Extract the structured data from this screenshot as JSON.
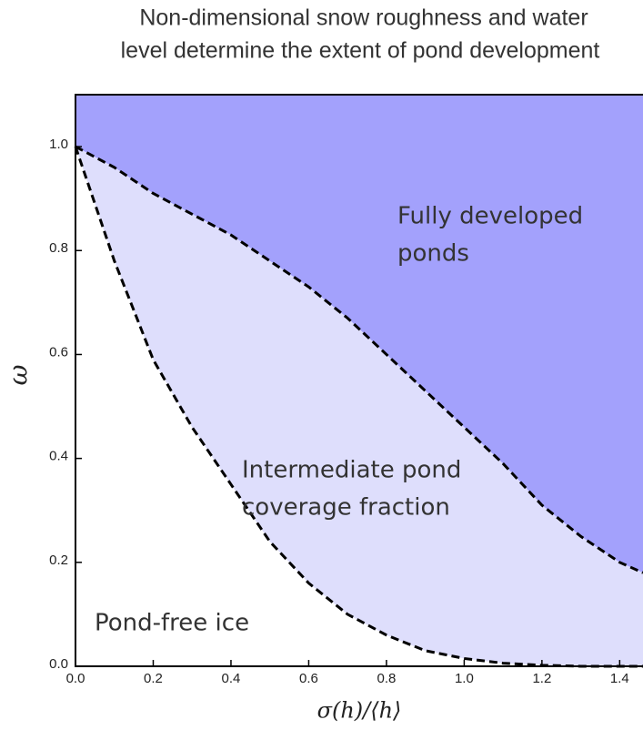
{
  "chart_data": {
    "type": "area",
    "title": [
      "Non-dimensional snow roughness and water",
      "level determine the extent of pond development"
    ],
    "x_label": "σ(h)/⟨h⟩",
    "y_label": "ω",
    "x": [
      0,
      0.1,
      0.2,
      0.3,
      0.4,
      0.5,
      0.6,
      0.7,
      0.8,
      0.9,
      1.0,
      1.1,
      1.2,
      1.3,
      1.4,
      1.46
    ],
    "series": [
      {
        "color": "#000000",
        "values": [
          1.0,
          0.96,
          0.91,
          0.87,
          0.83,
          0.78,
          0.73,
          0.67,
          0.6,
          0.53,
          0.46,
          0.39,
          0.31,
          0.25,
          0.2,
          0.18
        ]
      },
      {
        "color": "#000000",
        "values": [
          1.0,
          0.78,
          0.59,
          0.46,
          0.35,
          0.24,
          0.16,
          0.1,
          0.06,
          0.03,
          0.015,
          0.006,
          0.002,
          0.0,
          0.0,
          0.0
        ]
      }
    ],
    "area_colors": [
      "#a3a1fc",
      "#dedefc",
      "#ffffff"
    ],
    "annotations": [
      [
        "Fully developed",
        "ponds"
      ],
      [
        "Intermediate pond",
        "coverage fraction"
      ],
      [
        "Pond-free ice"
      ]
    ],
    "xlim": [
      0,
      1.46
    ],
    "ylim": [
      0,
      1.1
    ],
    "xticks": [
      {
        "value": 0,
        "label": "0.0"
      },
      0.2,
      0.4,
      0.6,
      0.8,
      {
        "value": 1,
        "label": "1.0"
      },
      1.2,
      1.4
    ],
    "yticks": [
      {
        "value": 0,
        "label": "0.0"
      },
      0.2,
      0.4,
      0.6,
      0.8,
      {
        "value": 1,
        "label": "1.0"
      }
    ],
    "grid": false
  }
}
